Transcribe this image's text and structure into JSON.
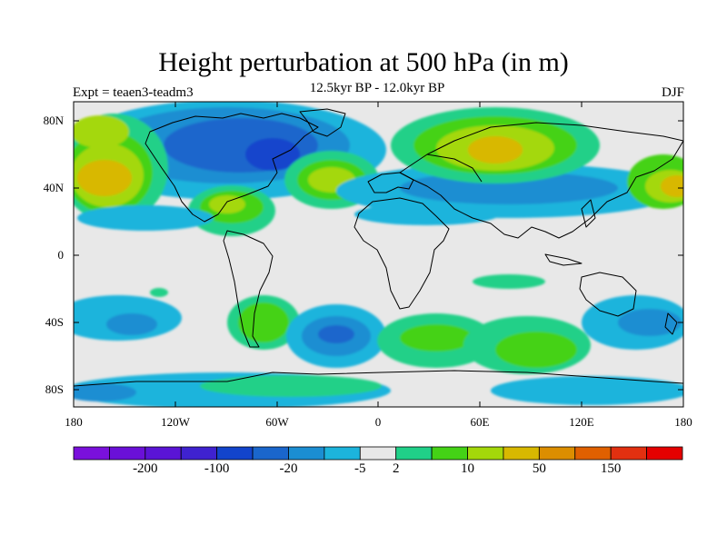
{
  "title": "Height perturbation at 500 hPa (in m)",
  "subtitle": "12.5kyr BP - 12.0kyr BP",
  "experiment": "Expt = teaen3-teadm3",
  "season": "DJF",
  "axes": {
    "lat_labels": [
      "80N",
      "40N",
      "0",
      "40S",
      "80S"
    ],
    "lon_labels": [
      "180",
      "120W",
      "60W",
      "0",
      "60E",
      "120E",
      "180"
    ]
  },
  "colorbar": {
    "labels": [
      "-200",
      "-100",
      "-20",
      "-5",
      "2",
      "10",
      "50",
      "150"
    ],
    "colors": [
      "#7a10dc",
      "#6a10d8",
      "#5a14d6",
      "#3f22d0",
      "#1244cc",
      "#1a66cc",
      "#1b8ed2",
      "#1cb4dc",
      "#e8e8e8",
      "#20d088",
      "#44d216",
      "#a4d80a",
      "#d8b800",
      "#dc8e00",
      "#e06000",
      "#e23010",
      "#e40000"
    ]
  },
  "colors": {
    "background_field": "#e8e8e8",
    "coast": "#000000"
  }
}
